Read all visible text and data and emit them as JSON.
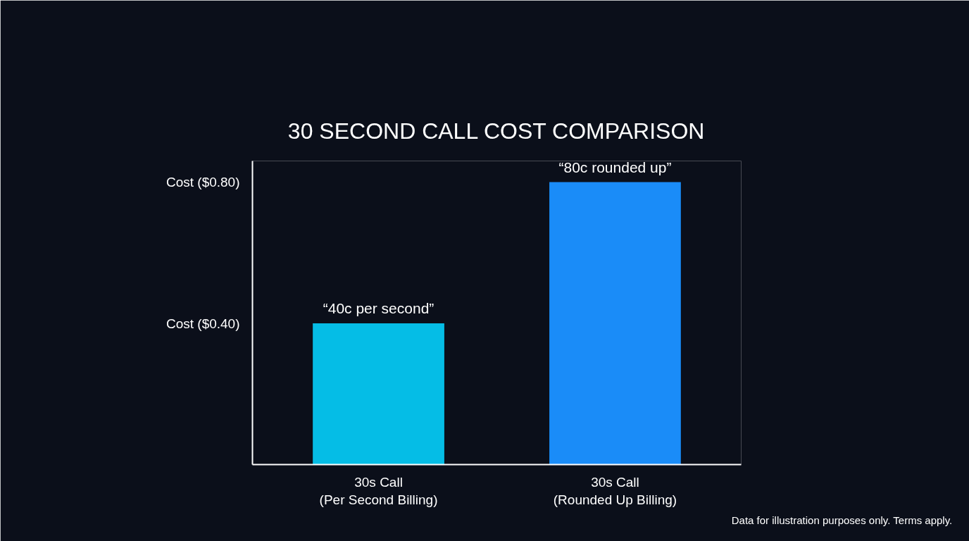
{
  "chart_data": {
    "type": "bar",
    "title": "30 SECOND CALL COST COMPARISON",
    "categories": [
      "30s Call\n(Per Second Billing)",
      "30s Call\n(Rounded Up Billing)"
    ],
    "values": [
      0.4,
      0.8
    ],
    "colors": [
      "#05bde6",
      "#1a8cf8"
    ],
    "ylim": [
      0,
      0.86
    ],
    "yticks": [
      {
        "value": 0.4,
        "label": "Cost ($0.40)"
      },
      {
        "value": 0.8,
        "label": "Cost ($0.80)"
      }
    ],
    "grid": false,
    "annotations": [
      {
        "text": "“40c per second”",
        "x": "30s Call\n(Per Second Billing)",
        "y": 0.4
      },
      {
        "text": "“80c rounded up”",
        "x": "30s Call\n(Rounded Up Billing)",
        "y": 0.8
      },
      "Data for illustration purposes only. Terms apply."
    ]
  }
}
